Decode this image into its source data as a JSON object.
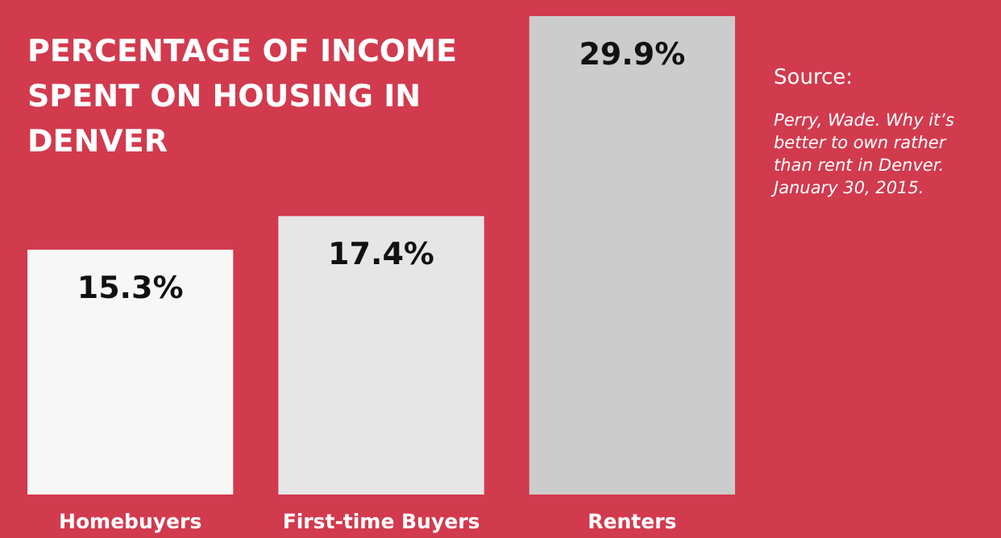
{
  "chart_data": {
    "type": "bar",
    "title": "PERCENTAGE OF INCOME SPENT ON HOUSING IN DENVER",
    "categories": [
      "Homebuyers",
      "First-time Buyers",
      "Renters"
    ],
    "values": [
      15.3,
      17.4,
      29.9
    ],
    "colors": [
      "#f7f7f7",
      "#e6e6e6",
      "#cccccc"
    ],
    "value_labels": [
      "15.3%",
      "17.4%",
      "29.9%"
    ],
    "annotations": [
      "Source:",
      "Perry, Wade. Why it’s better to own rather than rent in Denver. January 30, 2015."
    ]
  }
}
